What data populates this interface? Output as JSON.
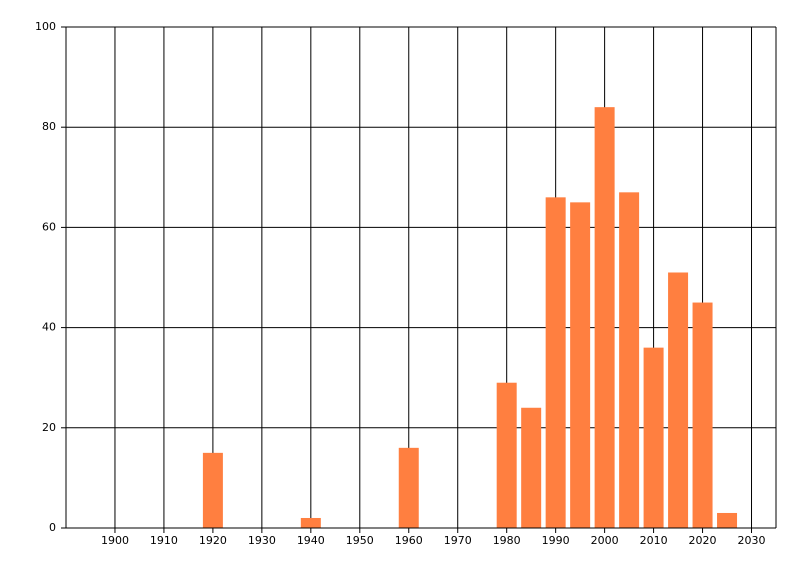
{
  "chart_data": {
    "type": "bar",
    "x": [
      1920,
      1940,
      1960,
      1980,
      1985,
      1990,
      1995,
      2000,
      2005,
      2010,
      2015,
      2020,
      2025
    ],
    "values": [
      15,
      2,
      16,
      29,
      24,
      66,
      65,
      84,
      67,
      36,
      51,
      45,
      3
    ],
    "color": "#ff7f40",
    "xlim": [
      1890,
      2035
    ],
    "xticks": [
      1900,
      1910,
      1920,
      1930,
      1940,
      1950,
      1960,
      1970,
      1980,
      1990,
      2000,
      2010,
      2020,
      2030
    ],
    "ylim": [
      0,
      100
    ],
    "yticks": [
      0,
      20,
      40,
      60,
      80,
      100
    ],
    "grid": true
  }
}
